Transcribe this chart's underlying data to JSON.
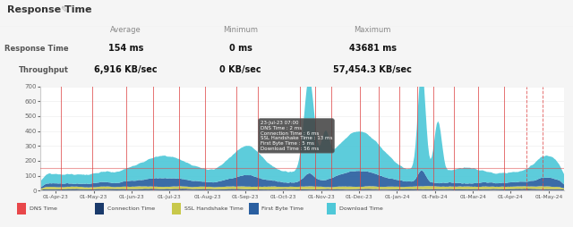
{
  "title": "Response Time",
  "stats": {
    "labels": [
      "Response Time",
      "Throughput"
    ],
    "average": [
      "154 ms",
      "6,916 KB/sec"
    ],
    "minimum": [
      "0 ms",
      "0 KB/sec"
    ],
    "maximum": [
      "43681 ms",
      "57,454.3 KB/sec"
    ]
  },
  "x_labels": [
    "01-Apr-23",
    "01-May-23",
    "01-Jun-23",
    "01-Jul-23",
    "01-Aug-23",
    "01-Sep-23",
    "01-Oct-23",
    "01-Nov-23",
    "01-Dec-23",
    "01-Jan-24",
    "01-Feb-24",
    "01-Mar-24",
    "01-Apr-24",
    "01-May-24"
  ],
  "ylim": [
    0,
    700
  ],
  "yticks": [
    0,
    100,
    200,
    300,
    400,
    500,
    600,
    700
  ],
  "legend": [
    "DNS Time",
    "Connection Time",
    "SSL Handshake Time",
    "First Byte Time",
    "Download Time"
  ],
  "legend_colors": [
    "#e8474a",
    "#1a3a6b",
    "#c8c84a",
    "#2a5fa0",
    "#4fc8d8"
  ],
  "tooltip_date": "23-Jul-23 07:00",
  "tooltip_values": [
    "DNS Time : 2 ms",
    "Connection Time : 6 ms",
    "SSL Handshake Time : 13 ms",
    "First Byte Time : 5 ms",
    "Download Time : 56 ms"
  ],
  "series_colors": {
    "dns": "#e8474a",
    "connection": "#1a3a6b",
    "ssl": "#c8c84a",
    "first_byte": "#2a5fa0",
    "download": "#4fc8d8"
  }
}
